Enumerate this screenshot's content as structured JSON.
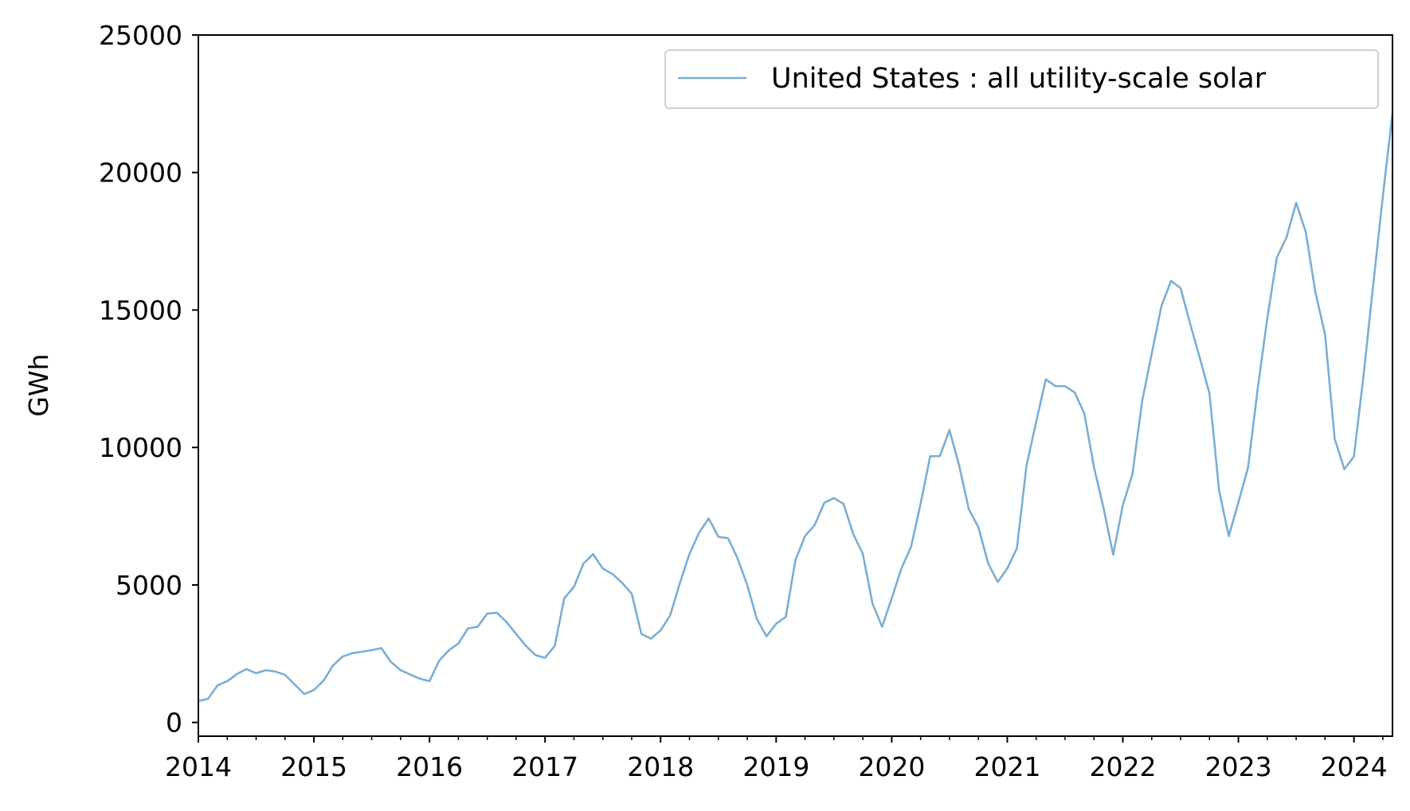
{
  "chart_data": {
    "type": "line",
    "title": "",
    "xlabel": "",
    "ylabel": "GWh",
    "xlim": [
      "2014-01",
      "2024-05"
    ],
    "ylim": [
      -500,
      25000
    ],
    "x_ticks": [
      "2014",
      "2015",
      "2016",
      "2017",
      "2018",
      "2019",
      "2020",
      "2021",
      "2022",
      "2023",
      "2024"
    ],
    "y_ticks": [
      0,
      5000,
      10000,
      15000,
      20000,
      25000
    ],
    "grid": false,
    "legend_position": "top-right",
    "series": [
      {
        "name": "United States : all utility-scale solar",
        "color": "#7aaed3",
        "x": [
          "2014-01",
          "2014-02",
          "2014-03",
          "2014-04",
          "2014-05",
          "2014-06",
          "2014-07",
          "2014-08",
          "2014-09",
          "2014-10",
          "2014-11",
          "2014-12",
          "2015-01",
          "2015-02",
          "2015-03",
          "2015-04",
          "2015-05",
          "2015-06",
          "2015-07",
          "2015-08",
          "2015-09",
          "2015-10",
          "2015-11",
          "2015-12",
          "2016-01",
          "2016-02",
          "2016-03",
          "2016-04",
          "2016-05",
          "2016-06",
          "2016-07",
          "2016-08",
          "2016-09",
          "2016-10",
          "2016-11",
          "2016-12",
          "2017-01",
          "2017-02",
          "2017-03",
          "2017-04",
          "2017-05",
          "2017-06",
          "2017-07",
          "2017-08",
          "2017-09",
          "2017-10",
          "2017-11",
          "2017-12",
          "2018-01",
          "2018-02",
          "2018-03",
          "2018-04",
          "2018-05",
          "2018-06",
          "2018-07",
          "2018-08",
          "2018-09",
          "2018-10",
          "2018-11",
          "2018-12",
          "2019-01",
          "2019-02",
          "2019-03",
          "2019-04",
          "2019-05",
          "2019-06",
          "2019-07",
          "2019-08",
          "2019-09",
          "2019-10",
          "2019-11",
          "2019-12",
          "2020-01",
          "2020-02",
          "2020-03",
          "2020-04",
          "2020-05",
          "2020-06",
          "2020-07",
          "2020-08",
          "2020-09",
          "2020-10",
          "2020-11",
          "2020-12",
          "2021-01",
          "2021-02",
          "2021-03",
          "2021-04",
          "2021-05",
          "2021-06",
          "2021-07",
          "2021-08",
          "2021-09",
          "2021-10",
          "2021-11",
          "2021-12",
          "2022-01",
          "2022-02",
          "2022-03",
          "2022-04",
          "2022-05",
          "2022-06",
          "2022-07",
          "2022-08",
          "2022-09",
          "2022-10",
          "2022-11",
          "2022-12",
          "2023-01",
          "2023-02",
          "2023-03",
          "2023-04",
          "2023-05",
          "2023-06",
          "2023-07",
          "2023-08",
          "2023-09",
          "2023-10",
          "2023-11",
          "2023-12",
          "2024-01",
          "2024-02",
          "2024-03",
          "2024-04",
          "2024-05"
        ],
        "values": [
          780,
          860,
          1350,
          1500,
          1760,
          1940,
          1790,
          1900,
          1850,
          1730,
          1380,
          1030,
          1180,
          1520,
          2080,
          2400,
          2520,
          2570,
          2630,
          2700,
          2200,
          1900,
          1740,
          1590,
          1500,
          2240,
          2620,
          2870,
          3420,
          3480,
          3960,
          3990,
          3650,
          3220,
          2790,
          2450,
          2350,
          2780,
          4520,
          4930,
          5780,
          6120,
          5600,
          5400,
          5080,
          4680,
          3220,
          3050,
          3350,
          3900,
          5060,
          6130,
          6900,
          7420,
          6750,
          6700,
          5960,
          4990,
          3760,
          3130,
          3590,
          3840,
          5900,
          6780,
          7180,
          7990,
          8160,
          7950,
          6860,
          6130,
          4330,
          3480,
          4510,
          5600,
          6380,
          7960,
          9680,
          9690,
          10630,
          9350,
          7760,
          7100,
          5800,
          5110,
          5600,
          6330,
          9340,
          10930,
          12480,
          12230,
          12230,
          12000,
          11230,
          9280,
          7800,
          6100,
          7900,
          9040,
          11680,
          13410,
          15140,
          16060,
          15800,
          14490,
          13250,
          11960,
          8430,
          6780,
          8000,
          9270,
          12130,
          14690,
          16910,
          17640,
          18900,
          17830,
          15640,
          14100,
          10310,
          9210,
          9670,
          12620,
          15910,
          19140,
          22140
        ]
      }
    ]
  }
}
